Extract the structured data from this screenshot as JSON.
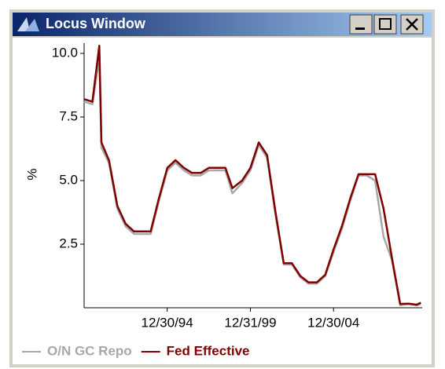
{
  "window": {
    "title": "Locus Window"
  },
  "chart_data": {
    "type": "line",
    "ylabel": "%",
    "x": [
      "1990-01-01",
      "1990-07-01",
      "1990-12-01",
      "1991-01-15",
      "1991-07-01",
      "1992-01-01",
      "1992-07-01",
      "1993-01-01",
      "1993-07-01",
      "1994-01-01",
      "1994-07-01",
      "1995-01-01",
      "1995-07-01",
      "1996-01-01",
      "1996-07-01",
      "1997-01-01",
      "1997-07-01",
      "1998-01-01",
      "1998-07-01",
      "1998-12-01",
      "1999-07-01",
      "2000-01-01",
      "2000-07-01",
      "2001-01-01",
      "2001-07-01",
      "2002-01-01",
      "2002-07-01",
      "2003-01-01",
      "2003-07-01",
      "2004-01-01",
      "2004-07-01",
      "2005-01-01",
      "2005-07-01",
      "2006-01-01",
      "2006-07-01",
      "2007-01-01",
      "2007-07-01",
      "2008-01-01",
      "2008-07-01",
      "2009-01-01",
      "2009-07-01",
      "2010-01-01",
      "2010-04-01"
    ],
    "series": [
      {
        "name": "O/N GC Repo",
        "color": "#a8a8a8",
        "values": [
          8.1,
          8.0,
          9.8,
          6.3,
          5.7,
          3.9,
          3.2,
          2.9,
          2.9,
          2.9,
          4.2,
          5.4,
          5.7,
          5.4,
          5.2,
          5.2,
          5.4,
          5.4,
          5.4,
          4.5,
          4.9,
          5.4,
          6.4,
          5.9,
          3.7,
          1.7,
          1.7,
          1.2,
          0.95,
          0.95,
          1.25,
          2.2,
          3.1,
          4.2,
          5.2,
          5.2,
          5.0,
          2.8,
          1.9,
          0.1,
          0.15,
          0.1,
          0.15
        ]
      },
      {
        "name": "Fed Effective",
        "color": "#800000",
        "values": [
          8.2,
          8.1,
          10.3,
          6.5,
          5.8,
          4.0,
          3.3,
          3.0,
          3.0,
          3.0,
          4.3,
          5.5,
          5.8,
          5.5,
          5.3,
          5.3,
          5.5,
          5.5,
          5.5,
          4.7,
          5.0,
          5.5,
          6.5,
          6.0,
          3.8,
          1.75,
          1.75,
          1.25,
          1.0,
          1.0,
          1.3,
          2.3,
          3.2,
          4.3,
          5.25,
          5.25,
          5.25,
          3.9,
          2.0,
          0.15,
          0.16,
          0.12,
          0.2
        ]
      }
    ],
    "xlim": [
      "1990-01-01",
      "2010-04-30"
    ],
    "xticks": [
      {
        "value": "1994-12-30",
        "label": "12/30/94"
      },
      {
        "value": "1999-12-31",
        "label": "12/31/99"
      },
      {
        "value": "2004-12-30",
        "label": "12/30/04"
      }
    ],
    "ylim": [
      0,
      10.4
    ],
    "yticks": [
      {
        "value": 2.5,
        "label": "2.5"
      },
      {
        "value": 5,
        "label": "5.0"
      },
      {
        "value": 7.5,
        "label": "7.5"
      },
      {
        "value": 10,
        "label": "10.0"
      }
    ],
    "legend": "bottom"
  }
}
